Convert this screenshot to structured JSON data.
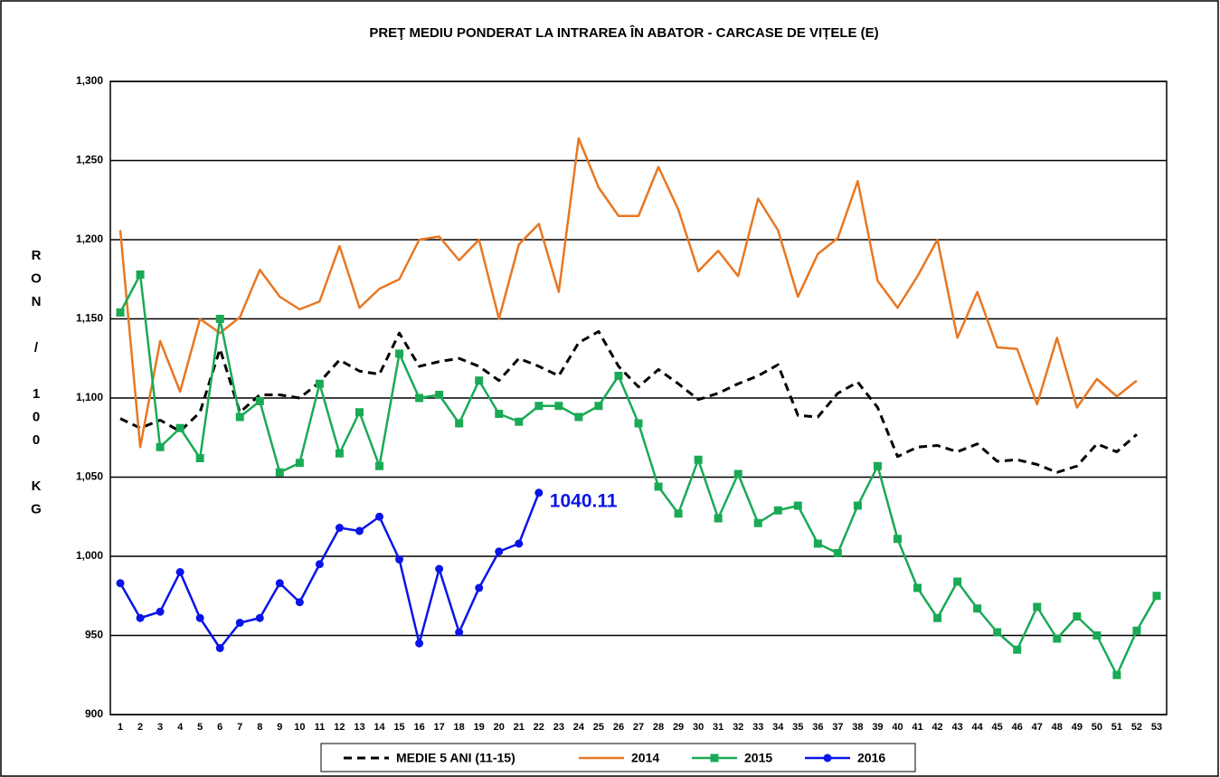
{
  "chart_data": {
    "type": "line",
    "title": "PREŢ MEDIU PONDERAT LA INTRAREA ÎN ABATOR - CARCASE DE VIȚELE (E)",
    "y_label": "RON / 100 KG",
    "categories": [
      1,
      2,
      3,
      4,
      5,
      6,
      7,
      8,
      9,
      10,
      11,
      12,
      13,
      14,
      15,
      16,
      17,
      18,
      19,
      20,
      21,
      22,
      23,
      24,
      25,
      26,
      27,
      28,
      29,
      30,
      31,
      32,
      33,
      34,
      35,
      36,
      37,
      38,
      39,
      40,
      41,
      42,
      43,
      44,
      45,
      46,
      47,
      48,
      49,
      50,
      51,
      52,
      53
    ],
    "ylim": [
      900,
      1300
    ],
    "yticks": [
      {
        "value": 900,
        "label": "900"
      },
      950,
      {
        "value": 1000,
        "label": "1,000"
      },
      {
        "value": 1050,
        "label": "1,050"
      },
      {
        "value": 1100,
        "label": "1,100"
      },
      {
        "value": 1150,
        "label": "1,150"
      },
      {
        "value": 1200,
        "label": "1,200"
      },
      {
        "value": 1250,
        "label": "1,250"
      },
      {
        "value": 1300,
        "label": "1,300"
      }
    ],
    "grid": true,
    "legend": "bottom",
    "series": [
      {
        "name": "MEDIE 5 ANI (11-15)",
        "color": "#000000",
        "dash": true,
        "marker": "none",
        "values": [
          1087,
          1081,
          1086,
          1079,
          1091,
          1131,
          1091,
          1102,
          1102,
          1100,
          1110,
          1124,
          1117,
          1115,
          1141,
          1120,
          1123,
          1125,
          1120,
          1111,
          1125,
          1120,
          1114,
          1135,
          1142,
          1120,
          1107,
          1118,
          1109,
          1099,
          1103,
          1109,
          1114,
          1121,
          1089,
          1088,
          1103,
          1110,
          1094,
          1063,
          1069,
          1070,
          1066,
          1071,
          1060,
          1061,
          1058,
          1053,
          1057,
          1071,
          1066,
          1077,
          null
        ]
      },
      {
        "name": "2014",
        "color": "#e87722",
        "dash": false,
        "marker": "none",
        "values": [
          1206,
          1069,
          1136,
          1104,
          1150,
          1141,
          1151,
          1181,
          1164,
          1156,
          1161,
          1196,
          1157,
          1169,
          1175,
          1200,
          1202,
          1187,
          1200,
          1150,
          1197,
          1210,
          1167,
          1264,
          1233,
          1215,
          1215,
          1246,
          1219,
          1180,
          1193,
          1177,
          1226,
          1206,
          1164,
          1191,
          1201,
          1237,
          1174,
          1157,
          1177,
          1200,
          1138,
          1167,
          1132,
          1131,
          1096,
          1138,
          1094,
          1112,
          1101,
          1111,
          null
        ]
      },
      {
        "name": "2015",
        "color": "#1aaa55",
        "dash": false,
        "marker": "square",
        "values": [
          1154,
          1178,
          1069,
          1081,
          1062,
          1150,
          1088,
          1098,
          1053,
          1059,
          1109,
          1065,
          1091,
          1057,
          1128,
          1100,
          1102,
          1084,
          1111,
          1090,
          1085,
          1095,
          1095,
          1088,
          1095,
          1114,
          1084,
          1044,
          1027,
          1061,
          1024,
          1052,
          1021,
          1029,
          1032,
          1008,
          1002,
          1032,
          1057,
          1011,
          980,
          961,
          984,
          967,
          952,
          941,
          968,
          948,
          962,
          950,
          925,
          953,
          975
        ]
      },
      {
        "name": "2016",
        "color": "#0a14e8",
        "dash": false,
        "marker": "circle",
        "values": [
          983,
          961,
          965,
          990,
          961,
          942,
          958,
          961,
          983,
          971,
          995,
          1018,
          1016,
          1025,
          998,
          945,
          992,
          952,
          980,
          1003,
          1008,
          1040.11,
          null,
          null,
          null,
          null,
          null,
          null,
          null,
          null,
          null,
          null,
          null,
          null,
          null,
          null,
          null,
          null,
          null,
          null,
          null,
          null,
          null,
          null,
          null,
          null,
          null,
          null,
          null,
          null,
          null,
          null,
          null
        ],
        "value_labels": [
          null,
          null,
          null,
          null,
          null,
          null,
          null,
          null,
          null,
          null,
          null,
          null,
          null,
          null,
          null,
          null,
          null,
          null,
          null,
          null,
          null,
          "1040.11",
          null,
          null,
          null,
          null,
          null,
          null,
          null,
          null,
          null,
          null,
          null,
          null,
          null,
          null,
          null,
          null,
          null,
          null,
          null,
          null,
          null,
          null,
          null,
          null,
          null,
          null,
          null,
          null,
          null,
          null,
          null
        ]
      }
    ]
  }
}
